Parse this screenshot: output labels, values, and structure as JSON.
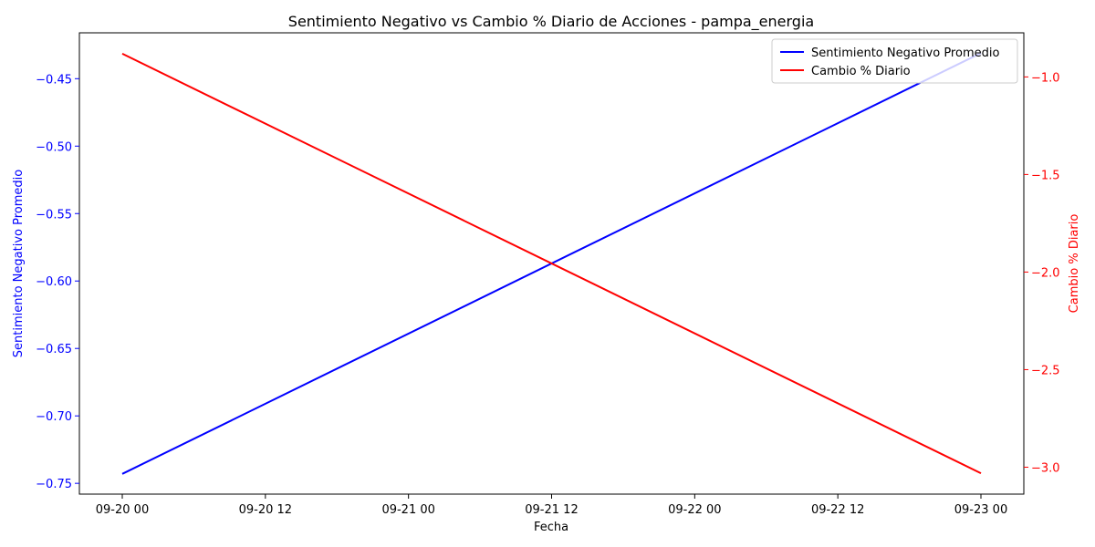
{
  "chart_data": {
    "type": "line",
    "title": "Sentimiento Negativo vs Cambio % Diario de Acciones - pampa_energia",
    "xlabel": "Fecha",
    "x": [
      "2023-09-20",
      "2023-09-23"
    ],
    "x_ticks": [
      "09-20 00",
      "09-20 12",
      "09-21 00",
      "09-21 12",
      "09-22 00",
      "09-22 12",
      "09-23 00"
    ],
    "y_left": {
      "label": "Sentimiento Negativo Promedio",
      "color": "#0000ff",
      "ylim": [
        -0.758,
        -0.416
      ],
      "ticks": [
        "-0.45",
        "-0.50",
        "-0.55",
        "-0.60",
        "-0.65",
        "-0.70",
        "-0.75"
      ]
    },
    "y_right": {
      "label": "Cambio % Diario",
      "color": "#ff0000",
      "ylim": [
        -3.138,
        -0.774
      ],
      "ticks": [
        "-1.0",
        "-1.5",
        "-2.0",
        "-2.5",
        "-3.0"
      ]
    },
    "series": [
      {
        "name": "Sentimiento Negativo Promedio",
        "axis": "left",
        "color": "#0000ff",
        "values": [
          -0.743,
          -0.431
        ]
      },
      {
        "name": "Cambio % Diario",
        "axis": "right",
        "color": "#ff0000",
        "values": [
          -0.881,
          -3.031
        ]
      }
    ],
    "legend_position": "top-right",
    "grid": false
  }
}
